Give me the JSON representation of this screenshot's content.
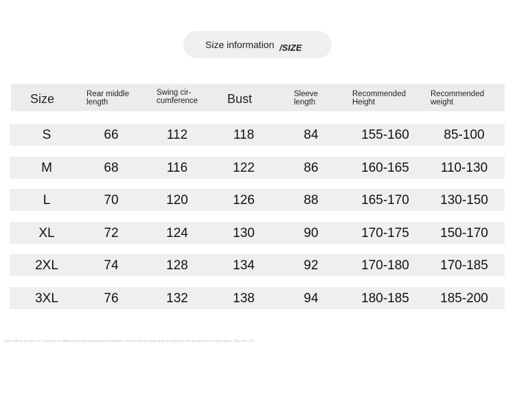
{
  "title": {
    "text": "Size information",
    "suffix": "/SIZE"
  },
  "table": {
    "headers": [
      "Size",
      "Rear middle length",
      "Swing cir-cumference",
      "Bust",
      "Sleeve length",
      "Recommended Height",
      "Recommended weight"
    ],
    "header_lines": [
      [
        "Size"
      ],
      [
        "Rear middle",
        "length"
      ],
      [
        "Swing cir-",
        "cumference"
      ],
      [
        "Bust"
      ],
      [
        "Sleeve",
        "length"
      ],
      [
        "Recommended",
        "Height"
      ],
      [
        "Recommended",
        "weight"
      ]
    ],
    "rows": [
      [
        "S",
        "66",
        "112",
        "118",
        "84",
        "155-160",
        "85-100"
      ],
      [
        "M",
        "68",
        "116",
        "122",
        "86",
        "160-165",
        "110-130"
      ],
      [
        "L",
        "70",
        "120",
        "126",
        "88",
        "165-170",
        "130-150"
      ],
      [
        "XL",
        "72",
        "124",
        "130",
        "90",
        "170-175",
        "150-170"
      ],
      [
        "2XL",
        "74",
        "128",
        "134",
        "92",
        "170-180",
        "170-185"
      ],
      [
        "3XL",
        "76",
        "132",
        "138",
        "94",
        "180-185",
        "185-200"
      ]
    ]
  },
  "footnote": "There will be an error of 1-3cm due to different manual measurement methods, and the relevant data shall be subject to the receipt of the actual object. Size unit: CM"
}
